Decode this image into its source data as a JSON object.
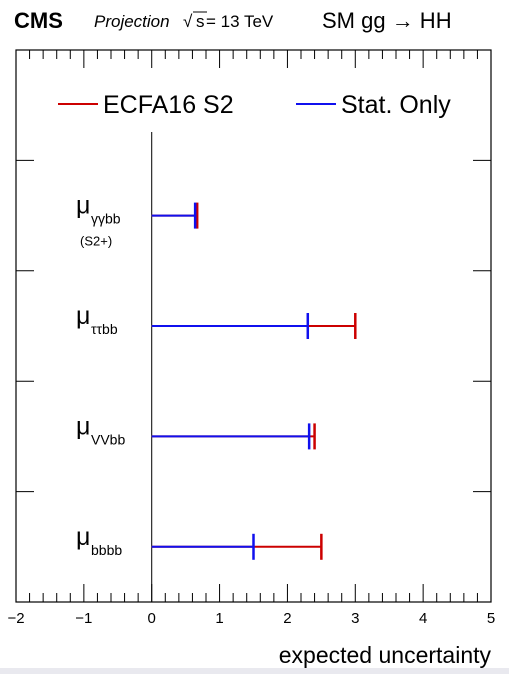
{
  "header": {
    "experiment": "CMS",
    "projection": "Projection",
    "energy_prefix": "s",
    "energy_suffix": " = 13 TeV",
    "process": "SM gg → HH"
  },
  "chart_data": {
    "type": "errorbar",
    "title": "SM gg → HH",
    "xlabel": "expected uncertainty",
    "xlim": [
      -2,
      5
    ],
    "xticks": [
      -2,
      -1,
      0,
      1,
      2,
      3,
      4,
      5
    ],
    "xtick_labels": [
      "−2",
      "−1",
      "0",
      "1",
      "2",
      "3",
      "4",
      "5"
    ],
    "categories": [
      {
        "symbol": "μ",
        "subscript": "γγbb",
        "note": "(S2+)"
      },
      {
        "symbol": "μ",
        "subscript": "ττbb",
        "note": ""
      },
      {
        "symbol": "μ",
        "subscript": "VVbb",
        "note": ""
      },
      {
        "symbol": "μ",
        "subscript": "bbbb",
        "note": ""
      }
    ],
    "series": [
      {
        "name": "ECFA16 S2",
        "color": "#cc0000",
        "values": [
          0.67,
          3.0,
          2.4,
          2.5
        ]
      },
      {
        "name": "Stat. Only",
        "color": "#1010ee",
        "values": [
          0.64,
          2.3,
          2.32,
          1.5
        ]
      }
    ],
    "legend_position": "top",
    "grid": false
  }
}
